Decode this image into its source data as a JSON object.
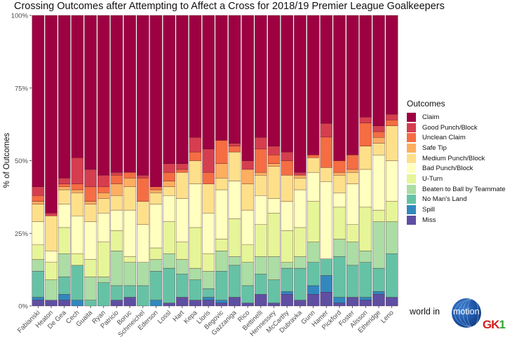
{
  "chart_data": {
    "type": "bar",
    "stacked": true,
    "normalized": true,
    "title": "Crossing Outcomes after Attempting to Affect a Cross for 2018/19 Premier League Goalkeepers",
    "xlabel": "",
    "ylabel": "% of Outcomes",
    "ylim": [
      0,
      100
    ],
    "yticks": [
      "0%",
      "25%",
      "50%",
      "75%",
      "100%"
    ],
    "ytick_values": [
      0,
      25,
      50,
      75,
      100
    ],
    "grid": false,
    "legend_title": "Outcomes",
    "legend_position": "right",
    "categories": [
      "Fabianski",
      "Heaton",
      "De Gea",
      "Cech",
      "Guaita",
      "Ryan",
      "Patricio",
      "Boruc",
      "Schmeichel",
      "Ederson",
      "Lossl",
      "Hart",
      "Kepa",
      "Lloris",
      "Begovic",
      "Gazzaniga",
      "Rico",
      "Bettinelli",
      "Hennessey",
      "McCarthy",
      "Dubravka",
      "Gunn",
      "Hamer",
      "Pickford",
      "Foster",
      "Alisson",
      "Etheridge",
      "Leno"
    ],
    "series": [
      {
        "name": "Miss",
        "color": "#5E4FA2",
        "values": [
          2,
          2,
          2,
          0,
          0,
          0,
          2,
          3,
          0,
          0,
          1,
          3,
          2,
          2,
          1,
          3,
          1,
          4,
          1,
          4,
          2,
          4,
          5,
          1,
          3,
          2,
          4,
          3
        ]
      },
      {
        "name": "Spill",
        "color": "#3288BD",
        "values": [
          1,
          0,
          2,
          2,
          0,
          0,
          0,
          0,
          0,
          2,
          0,
          0,
          0,
          1,
          1,
          0,
          0,
          0,
          0,
          1,
          0,
          3,
          6,
          2,
          0,
          1,
          1,
          0
        ]
      },
      {
        "name": "No Man's Land",
        "color": "#66C2A5",
        "values": [
          9,
          0,
          6,
          12,
          2,
          8,
          5,
          4,
          7,
          10,
          12,
          8,
          7,
          3,
          10,
          11,
          6,
          7,
          8,
          8,
          11,
          8,
          6,
          14,
          11,
          12,
          8,
          15
        ]
      },
      {
        "name": "Beaten to Ball by Teammate",
        "color": "#ABDDA4",
        "values": [
          4,
          7,
          8,
          0,
          8,
          2,
          12,
          8,
          8,
          4,
          5,
          5,
          4,
          6,
          7,
          3,
          8,
          6,
          8,
          2,
          4,
          7,
          0,
          6,
          8,
          4,
          16,
          11
        ]
      },
      {
        "name": "U-Turn",
        "color": "#E6F598",
        "values": [
          5,
          6,
          9,
          4,
          6,
          12,
          7,
          2,
          0,
          4,
          11,
          6,
          14,
          6,
          4,
          13,
          6,
          11,
          15,
          11,
          10,
          14,
          0,
          11,
          6,
          15,
          4,
          7
        ]
      },
      {
        "name": "Bad Punch/Block",
        "color": "#FFFFBF",
        "values": [
          8,
          4,
          8,
          13,
          13,
          10,
          7,
          16,
          13,
          15,
          9,
          15,
          15,
          14,
          17,
          13,
          12,
          10,
          5,
          10,
          13,
          10,
          28,
          5,
          14,
          13,
          19,
          14
        ]
      },
      {
        "name": "Medium Punch/Block",
        "color": "#FEE08B",
        "values": [
          6,
          12,
          5,
          8,
          6,
          5,
          5,
          8,
          8,
          4,
          3,
          9,
          8,
          10,
          4,
          10,
          9,
          7,
          11,
          9,
          4,
          5,
          5,
          6,
          4,
          8,
          4,
          12
        ]
      },
      {
        "name": "Safe Tip",
        "color": "#FDAE61",
        "values": [
          1,
          0,
          1,
          1,
          1,
          2,
          4,
          3,
          0,
          1,
          2,
          0,
          0,
          0,
          5,
          0,
          5,
          1,
          1,
          0,
          1,
          0,
          0,
          1,
          1,
          0,
          2,
          0
        ]
      },
      {
        "name": "Unclean Claim",
        "color": "#F46D43",
        "values": [
          2,
          0,
          1,
          2,
          5,
          2,
          3,
          2,
          8,
          1,
          3,
          1,
          3,
          4,
          8,
          2,
          0,
          8,
          3,
          5,
          0,
          1,
          11,
          4,
          5,
          8,
          2,
          2
        ]
      },
      {
        "name": "Good Punch/Block",
        "color": "#D53E4F",
        "values": [
          3,
          1,
          2,
          9,
          6,
          4,
          1,
          0,
          1,
          0,
          3,
          2,
          5,
          8,
          0,
          1,
          3,
          4,
          3,
          3,
          1,
          0,
          5,
          0,
          0,
          2,
          2,
          2
        ]
      },
      {
        "name": "Claim",
        "color": "#9E0142",
        "values": [
          59,
          68,
          56,
          49,
          53,
          55,
          54,
          54,
          55,
          59,
          51,
          51,
          42,
          46,
          43,
          44,
          50,
          42,
          45,
          47,
          54,
          48,
          39,
          50,
          48,
          35,
          38,
          34
        ]
      }
    ]
  },
  "legend": {
    "title": "Outcomes",
    "items": [
      {
        "label": "Claim",
        "color": "#9E0142"
      },
      {
        "label": "Good Punch/Block",
        "color": "#D53E4F"
      },
      {
        "label": "Unclean Claim",
        "color": "#F46D43"
      },
      {
        "label": "Safe Tip",
        "color": "#FDAE61"
      },
      {
        "label": "Medium Punch/Block",
        "color": "#FEE08B"
      },
      {
        "label": "Bad Punch/Block",
        "color": "#FFFFBF"
      },
      {
        "label": "U-Turn",
        "color": "#E6F598"
      },
      {
        "label": "Beaten to Ball by Teammate",
        "color": "#ABDDA4"
      },
      {
        "label": "No Man's Land",
        "color": "#66C2A5"
      },
      {
        "label": "Spill",
        "color": "#3288BD"
      },
      {
        "label": "Miss",
        "color": "#5E4FA2"
      }
    ]
  },
  "logo": {
    "text_left": "world in",
    "text_globe": "motion",
    "brand_main": "GK",
    "brand_digit": "1"
  }
}
